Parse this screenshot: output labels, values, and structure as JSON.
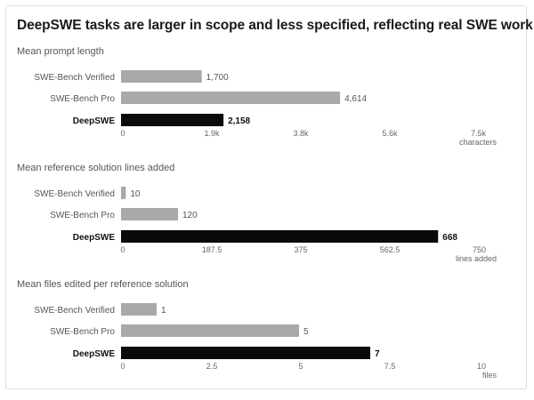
{
  "title": "DeepSWE tasks are larger in scope and less specified, reflecting real SWE work",
  "colors": {
    "baseline": "#a9a9a9",
    "highlight": "#0a0a0a",
    "text": "#555555",
    "text_strong": "#111111",
    "axis": "#666666"
  },
  "chart_data": [
    {
      "type": "bar",
      "orientation": "horizontal",
      "title": "Mean prompt length",
      "categories": [
        "SWE-Bench Verified",
        "SWE-Bench Pro",
        "DeepSWE"
      ],
      "values": [
        1700,
        4614,
        2158
      ],
      "value_labels": [
        "1,700",
        "4,614",
        "2,158"
      ],
      "highlight": "DeepSWE",
      "xlim": [
        0,
        7500
      ],
      "xticks": [
        0,
        1875,
        3750,
        5625,
        7500
      ],
      "xtick_labels": [
        "0",
        "1.9k",
        "3.8k",
        "5.6k",
        "7.5k"
      ],
      "xlabel": "characters",
      "grid": false
    },
    {
      "type": "bar",
      "orientation": "horizontal",
      "title": "Mean reference solution lines added",
      "categories": [
        "SWE-Bench Verified",
        "SWE-Bench Pro",
        "DeepSWE"
      ],
      "values": [
        10,
        120,
        668
      ],
      "value_labels": [
        "10",
        "120",
        "668"
      ],
      "highlight": "DeepSWE",
      "xlim": [
        0,
        750
      ],
      "xticks": [
        0,
        187.5,
        375,
        562.5,
        750
      ],
      "xtick_labels": [
        "0",
        "187.5",
        "375",
        "562.5",
        "750"
      ],
      "xlabel": "lines added",
      "grid": false
    },
    {
      "type": "bar",
      "orientation": "horizontal",
      "title": "Mean files edited per reference solution",
      "categories": [
        "SWE-Bench Verified",
        "SWE-Bench Pro",
        "DeepSWE"
      ],
      "values": [
        1,
        5,
        7
      ],
      "value_labels": [
        "1",
        "5",
        "7"
      ],
      "highlight": "DeepSWE",
      "xlim": [
        0,
        10
      ],
      "xticks": [
        0,
        2.5,
        5,
        7.5,
        10
      ],
      "xtick_labels": [
        "0",
        "2.5",
        "5",
        "7.5",
        "10"
      ],
      "xlabel": "files",
      "grid": false
    }
  ]
}
